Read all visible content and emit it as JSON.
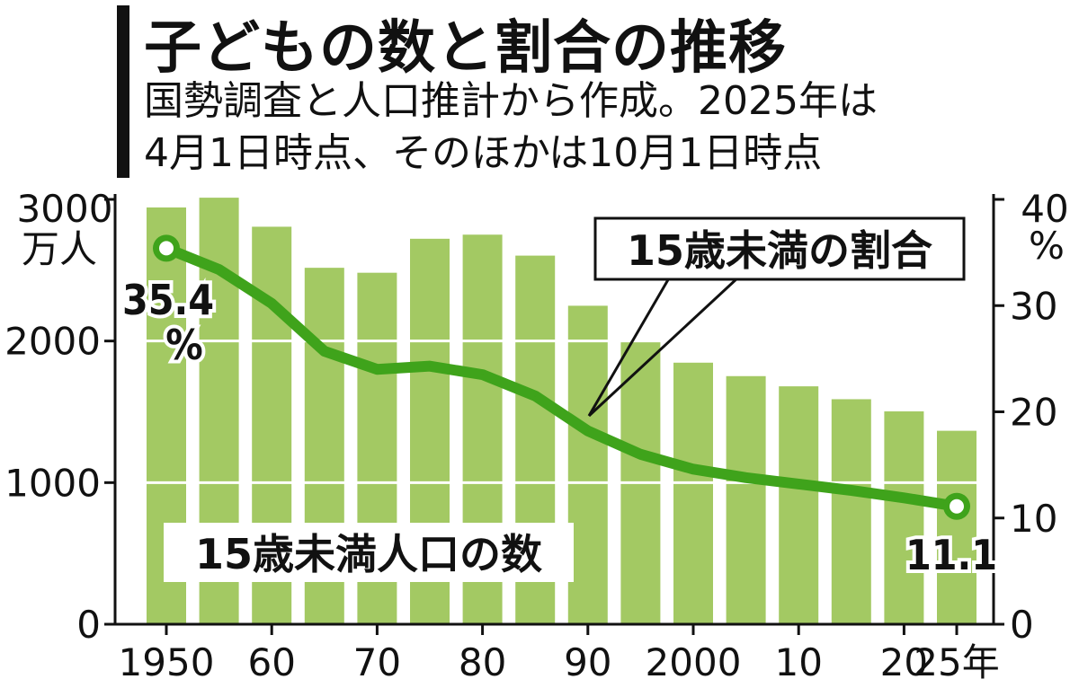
{
  "title": "子どもの数と割合の推移",
  "subtitle_line1": "国勢調査と人口推計から作成。2025年は",
  "subtitle_line2": "4月1日時点、そのほかは10月1日時点",
  "colors": {
    "bar": "#a3c963",
    "line": "#3fa31b",
    "axis": "#111111",
    "grid": "#ffffff"
  },
  "chart_data": {
    "type": "bar+line",
    "title": "子どもの数と割合の推移",
    "left_axis": {
      "unit_top": "3000",
      "unit": "万人",
      "ylim": [
        0,
        3000
      ],
      "ticks": [
        "0",
        "1000",
        "2000",
        "3000"
      ]
    },
    "right_axis": {
      "unit_top": "40",
      "unit": "%",
      "ylim": [
        0,
        40
      ],
      "ticks": [
        "0",
        "10",
        "20",
        "30",
        "40"
      ]
    },
    "x_tick_labels": [
      "1950",
      "60",
      "70",
      "80",
      "90",
      "2000",
      "10",
      "20",
      "25年"
    ],
    "x_tick_years": [
      1950,
      1960,
      1970,
      1980,
      1990,
      2000,
      2010,
      2020,
      2025
    ],
    "years": [
      1950,
      1955,
      1960,
      1965,
      1970,
      1975,
      1980,
      1985,
      1990,
      1995,
      2000,
      2005,
      2010,
      2015,
      2020,
      2025
    ],
    "series": [
      {
        "name": "15歳未満人口の数",
        "axis": "left",
        "values": [
          2943,
          3012,
          2807,
          2517,
          2482,
          2722,
          2751,
          2603,
          2249,
          2001,
          1847,
          1752,
          1680,
          1589,
          1503,
          1366
        ]
      },
      {
        "name": "15歳未満の割合",
        "axis": "right",
        "values": [
          35.4,
          33.4,
          30.2,
          25.7,
          24.0,
          24.3,
          23.5,
          21.5,
          18.2,
          16.0,
          14.6,
          13.8,
          13.2,
          12.6,
          11.9,
          11.1
        ]
      }
    ],
    "annotations": {
      "first": "35.4",
      "first_unit": "%",
      "last": "11.1"
    },
    "grid": true
  }
}
